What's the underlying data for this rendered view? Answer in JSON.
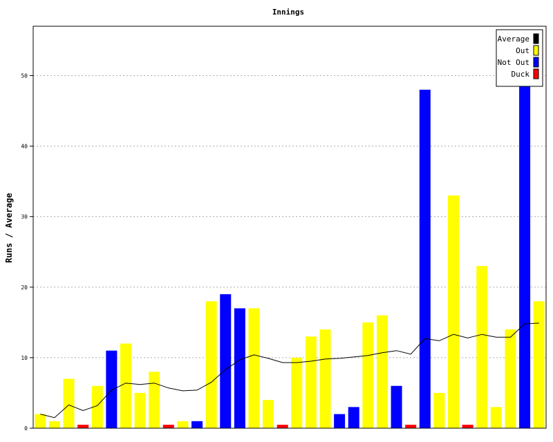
{
  "chart_data": {
    "type": "bar",
    "title": "Innings",
    "xlabel": "",
    "ylabel": "Runs / Average",
    "ylim": [
      0,
      57
    ],
    "yticks": [
      0,
      10,
      20,
      30,
      40,
      50
    ],
    "grid": true,
    "legend_position": "top-right",
    "colors": {
      "Average": "#000000",
      "Out": "#ffff00",
      "Not Out": "#0000ff",
      "Duck": "#ff0000"
    },
    "legend": [
      "Average",
      "Out",
      "Not Out",
      "Duck"
    ],
    "innings": [
      {
        "runs": 2,
        "status": "Out"
      },
      {
        "runs": 1,
        "status": "Out"
      },
      {
        "runs": 7,
        "status": "Out"
      },
      {
        "runs": 0,
        "status": "Duck"
      },
      {
        "runs": 6,
        "status": "Out"
      },
      {
        "runs": 11,
        "status": "Not Out"
      },
      {
        "runs": 12,
        "status": "Out"
      },
      {
        "runs": 5,
        "status": "Out"
      },
      {
        "runs": 8,
        "status": "Out"
      },
      {
        "runs": 0,
        "status": "Duck"
      },
      {
        "runs": 1,
        "status": "Out"
      },
      {
        "runs": 1,
        "status": "Not Out"
      },
      {
        "runs": 18,
        "status": "Out"
      },
      {
        "runs": 19,
        "status": "Not Out"
      },
      {
        "runs": 17,
        "status": "Not Out"
      },
      {
        "runs": 17,
        "status": "Out"
      },
      {
        "runs": 4,
        "status": "Out"
      },
      {
        "runs": 0,
        "status": "Duck"
      },
      {
        "runs": 10,
        "status": "Out"
      },
      {
        "runs": 13,
        "status": "Out"
      },
      {
        "runs": 14,
        "status": "Out"
      },
      {
        "runs": 2,
        "status": "Not Out"
      },
      {
        "runs": 3,
        "status": "Not Out"
      },
      {
        "runs": 15,
        "status": "Out"
      },
      {
        "runs": 16,
        "status": "Out"
      },
      {
        "runs": 6,
        "status": "Not Out"
      },
      {
        "runs": 0,
        "status": "Duck"
      },
      {
        "runs": 48,
        "status": "Not Out"
      },
      {
        "runs": 5,
        "status": "Out"
      },
      {
        "runs": 33,
        "status": "Out"
      },
      {
        "runs": 0,
        "status": "Duck"
      },
      {
        "runs": 23,
        "status": "Out"
      },
      {
        "runs": 3,
        "status": "Out"
      },
      {
        "runs": 14,
        "status": "Out"
      },
      {
        "runs": 49,
        "status": "Not Out"
      },
      {
        "runs": 18,
        "status": "Out"
      }
    ],
    "average": [
      2.0,
      1.5,
      3.3,
      2.5,
      3.2,
      5.4,
      6.4,
      6.2,
      6.4,
      5.7,
      5.3,
      5.4,
      6.5,
      8.3,
      9.7,
      10.4,
      9.9,
      9.3,
      9.3,
      9.5,
      9.8,
      9.9,
      10.1,
      10.3,
      10.7,
      11.0,
      10.5,
      12.7,
      12.4,
      13.3,
      12.8,
      13.3,
      12.9,
      12.9,
      14.8,
      14.9
    ]
  }
}
